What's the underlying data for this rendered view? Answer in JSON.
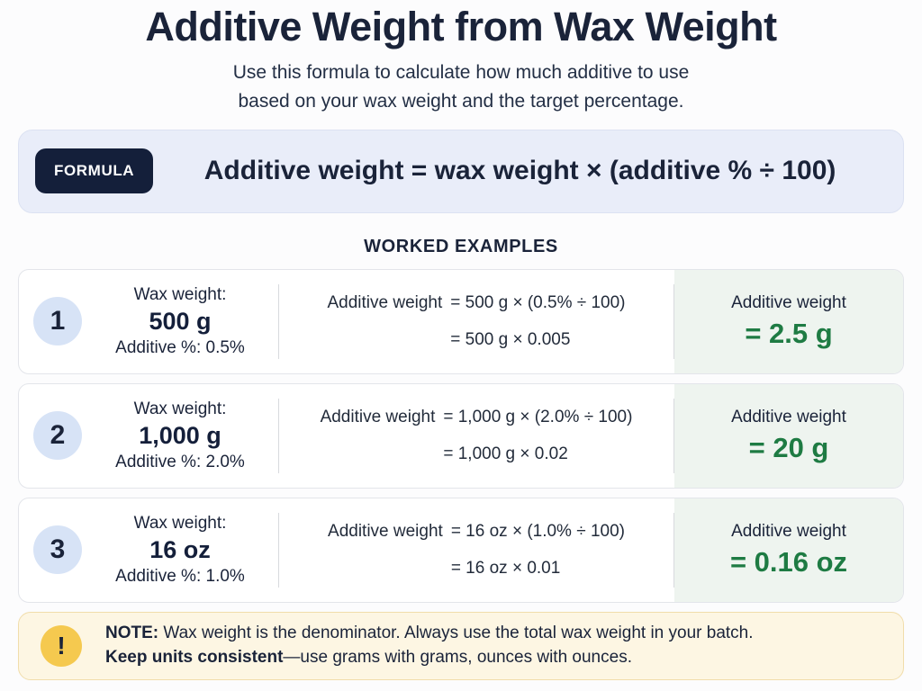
{
  "header": {
    "title": "Additive Weight from Wax Weight",
    "subtitle_line1": "Use this formula to calculate how much additive to use",
    "subtitle_line2": "based on your wax weight and the target percentage."
  },
  "formula": {
    "badge_label": "FORMULA",
    "text": "Additive weight = wax weight × (additive % ÷ 100)"
  },
  "examples": {
    "heading": "WORKED EXAMPLES",
    "rows": [
      {
        "number": "1",
        "wax_weight_label": "Wax weight:",
        "wax_weight_value": "500 g",
        "additive_pct": "Additive %: 0.5%",
        "calc_label": "Additive weight",
        "calc_expr1": "=  500 g × (0.5% ÷ 100)",
        "calc_expr2": "=  500 g × 0.005",
        "result_label": "Additive weight",
        "result_value": "= 2.5 g"
      },
      {
        "number": "2",
        "wax_weight_label": "Wax weight:",
        "wax_weight_value": "1,000 g",
        "additive_pct": "Additive %: 2.0%",
        "calc_label": "Additive weight",
        "calc_expr1": "=  1,000 g × (2.0% ÷ 100)",
        "calc_expr2": "=  1,000 g × 0.02",
        "result_label": "Additive weight",
        "result_value": "= 20 g"
      },
      {
        "number": "3",
        "wax_weight_label": "Wax weight:",
        "wax_weight_value": "16 oz",
        "additive_pct": "Additive %: 1.0%",
        "calc_label": "Additive weight",
        "calc_expr1": "=  16 oz × (1.0% ÷ 100)",
        "calc_expr2": "=  16 oz × 0.01",
        "result_label": "Additive weight",
        "result_value": "= 0.16 oz"
      }
    ]
  },
  "note": {
    "icon_glyph": "!",
    "line1_bold": "NOTE:",
    "line1_text": " Wax weight is the denominator. Always use the total wax weight in your batch.",
    "line2_bold": "Keep units consistent",
    "line2_text": "—use grams with grams, ounces with ounces."
  },
  "colors": {
    "navy_text": "#1a2339",
    "badge_navy": "#141f3a",
    "formula_card_bg": "#e9edf9",
    "number_badge_bg": "#d7e3f6",
    "result_panel_bg": "#eef4ef",
    "result_green": "#1e7b43",
    "note_bg": "#fdf6e3",
    "note_border": "#f1ddab",
    "warn_yellow": "#f5c94f"
  }
}
